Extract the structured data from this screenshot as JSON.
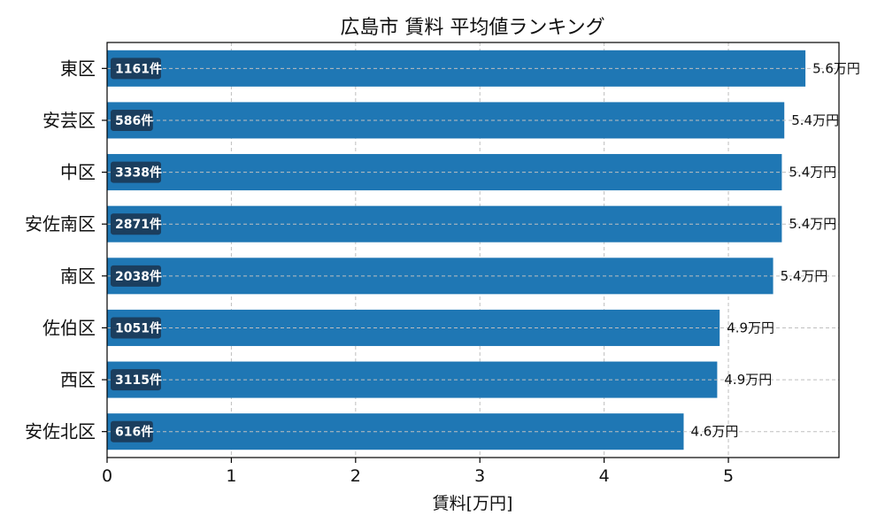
{
  "chart_data": {
    "type": "bar",
    "orientation": "horizontal",
    "title": "広島市 賃料 平均値ランキング",
    "xlabel": "賃料[万円]",
    "ylabel": "",
    "xlim": [
      0,
      5.89
    ],
    "xticks": [
      0,
      1,
      2,
      3,
      4,
      5
    ],
    "grid": true,
    "categories": [
      "東区",
      "安芸区",
      "中区",
      "安佐南区",
      "南区",
      "佐伯区",
      "西区",
      "安佐北区"
    ],
    "values": [
      5.62,
      5.45,
      5.43,
      5.43,
      5.36,
      4.93,
      4.91,
      4.64
    ],
    "value_labels": [
      "5.6万円",
      "5.4万円",
      "5.4万円",
      "5.4万円",
      "5.4万円",
      "4.9万円",
      "4.9万円",
      "4.6万円"
    ],
    "count_labels": [
      "1161件",
      "586件",
      "3338件",
      "2871件",
      "2038件",
      "1051件",
      "3115件",
      "616件"
    ],
    "bar_color": "#1f77b4",
    "count_box_color": "#1b3a57"
  }
}
